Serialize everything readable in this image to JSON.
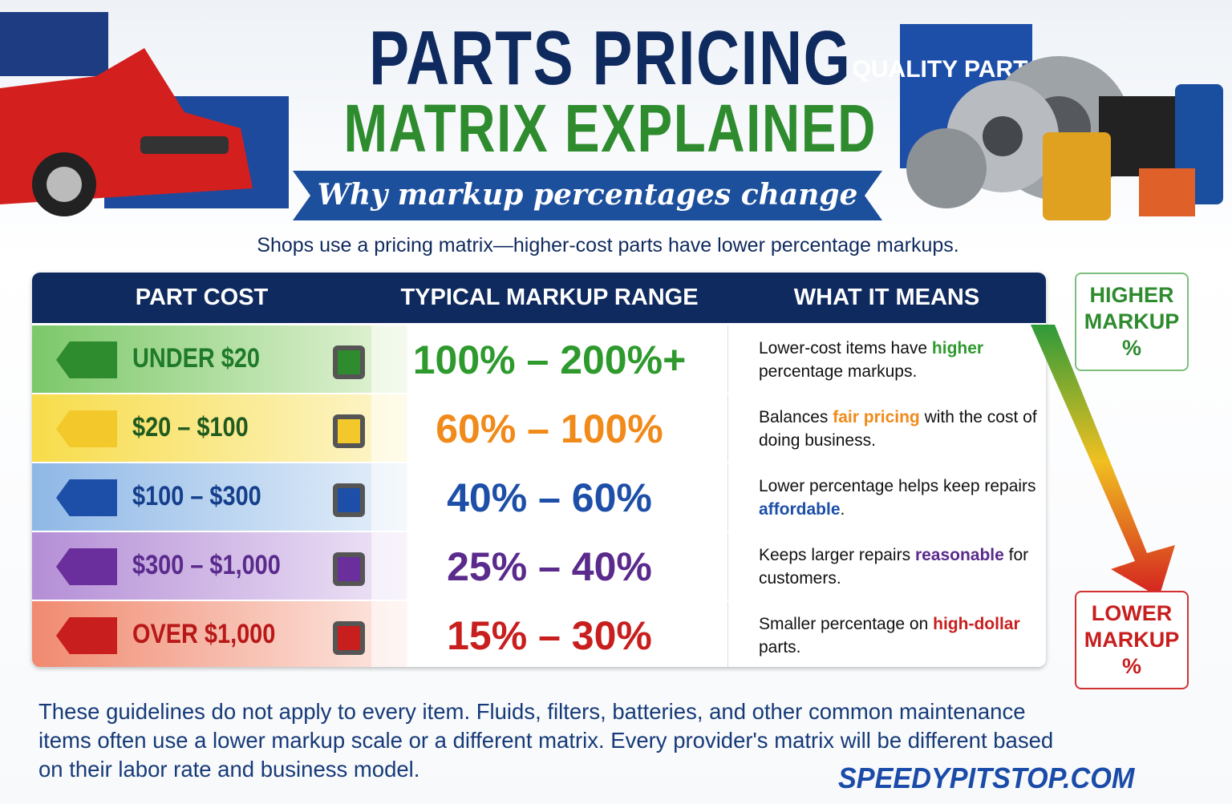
{
  "header": {
    "title_line1": "PARTS PRICING",
    "title_line2": "MATRIX EXPLAINED",
    "subtitle": "Why markup percentages change",
    "badge": "QUALITY PARTS"
  },
  "intro": "Shops use a pricing matrix—higher-cost parts have lower percentage markups.",
  "table": {
    "headers": [
      "PART COST",
      "TYPICAL MARKUP RANGE",
      "WHAT IT MEANS"
    ],
    "rows": [
      {
        "cost": "UNDER $20",
        "markup": "100% – 200%+",
        "meaning": [
          "Lower-cost items have ",
          "higher",
          " percentage markups."
        ]
      },
      {
        "cost": "$20 – $100",
        "markup": "60% – 100%",
        "meaning": [
          "Balances ",
          "fair pricing",
          " with the cost of doing business."
        ]
      },
      {
        "cost": "$100 – $300",
        "markup": "40% – 60%",
        "meaning": [
          "Lower percentage helps keep repairs ",
          "affordable",
          "."
        ]
      },
      {
        "cost": "$300 – $1,000",
        "markup": "25% – 40%",
        "meaning": [
          "Keeps larger repairs ",
          "reasonable",
          " for customers."
        ]
      },
      {
        "cost": "OVER $1,000",
        "markup": "15% – 30%",
        "meaning": [
          "Smaller percentage on ",
          "high-dollar",
          " parts."
        ]
      }
    ]
  },
  "side": {
    "higher": "HIGHER MARKUP %",
    "lower": "LOWER MARKUP %"
  },
  "footer": {
    "note": "These guidelines do not apply to every item. Fluids, filters, batteries, and other common maintenance items often use a lower markup scale or a different matrix. Every provider's matrix will be different based on their labor rate and business model.",
    "site": "SPEEDYPITSTOP.COM"
  }
}
